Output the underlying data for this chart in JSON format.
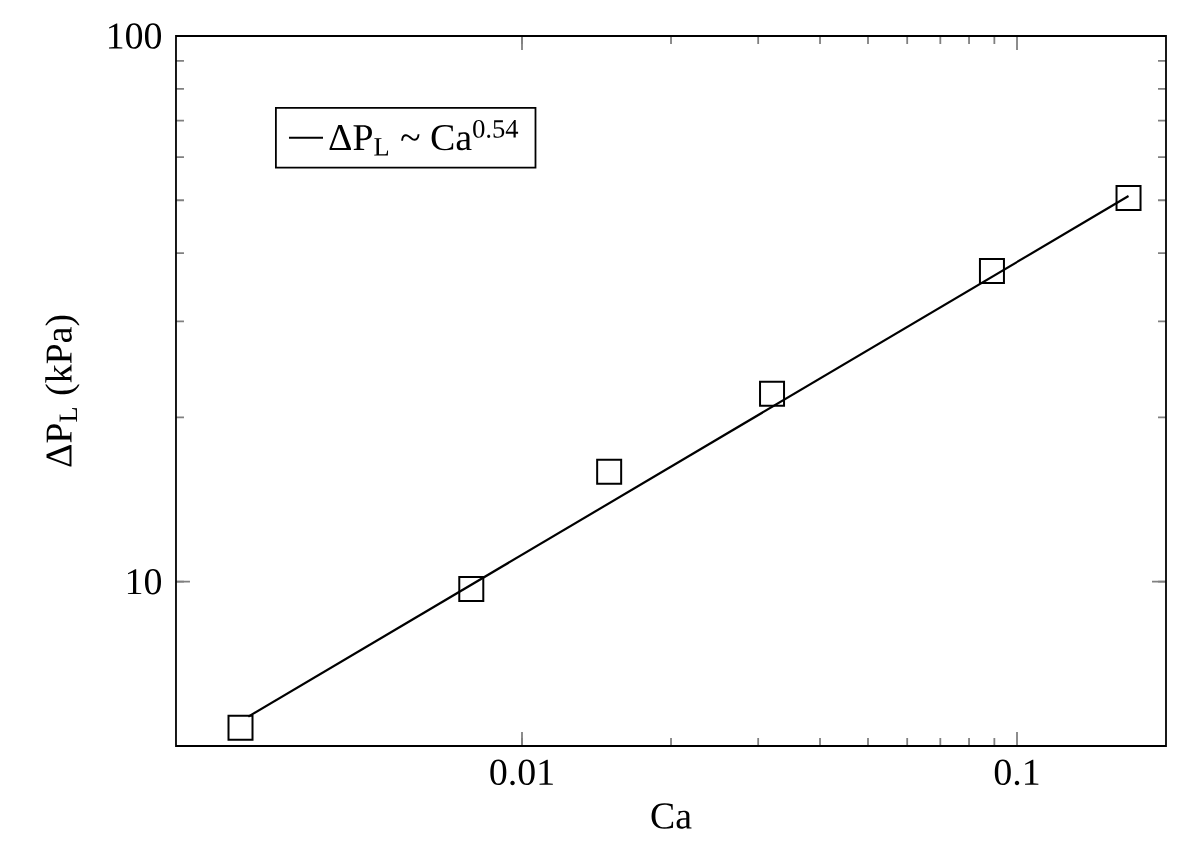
{
  "chart_data": {
    "type": "scatter",
    "xlabel": "Ca",
    "ylabel": "ΔP$_{L}$ (kPa)",
    "log": "xy",
    "legend": "top left",
    "xlim": [
      0.002,
      0.2
    ],
    "ylim": [
      5,
      100
    ],
    "xticks": [
      0.01,
      0.1
    ],
    "yticks": [
      10,
      100
    ],
    "series": [
      {
        "type": "line",
        "marker": "none",
        "color": "#000000",
        "name": "ΔP$_{L}$ ~ Ca$^{0.54}$",
        "x": [
          0.0028,
          0.168
        ],
        "values": [
          5.66,
          50.9
        ]
      },
      {
        "marker": "square",
        "color": "#000000",
        "x": [
          0.0027,
          0.0079,
          0.015,
          0.032,
          0.089,
          0.168
        ],
        "values": [
          5.4,
          9.7,
          15.9,
          22.1,
          37.1,
          50.5
        ]
      }
    ]
  }
}
